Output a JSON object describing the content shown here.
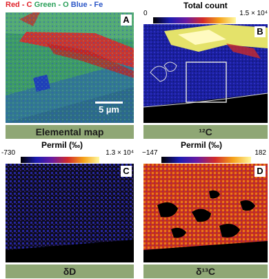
{
  "panel_a": {
    "legend": {
      "red": "Red - C",
      "green": "Green - O",
      "blue": "Blue - Fe"
    },
    "colors": {
      "red": "#e0222a",
      "green": "#2aa05a",
      "blue": "#2b56c7"
    },
    "letter": "A",
    "scale_bar": "5 µm",
    "caption": "Elemental map"
  },
  "panel_b": {
    "colorbar_min": "0",
    "colorbar_title": "Total count",
    "colorbar_max": "1.5 × 10⁴",
    "letter": "B",
    "caption": "¹²C"
  },
  "panel_c": {
    "colorbar_min": "-730",
    "colorbar_title": "Permil (‰)",
    "colorbar_max": "1.3 × 10⁴",
    "letter": "C",
    "caption": "δD"
  },
  "panel_d": {
    "colorbar_min": "−147",
    "colorbar_title": "Permil (‰)",
    "colorbar_max": "182",
    "letter": "D",
    "caption": "δ¹³C"
  }
}
